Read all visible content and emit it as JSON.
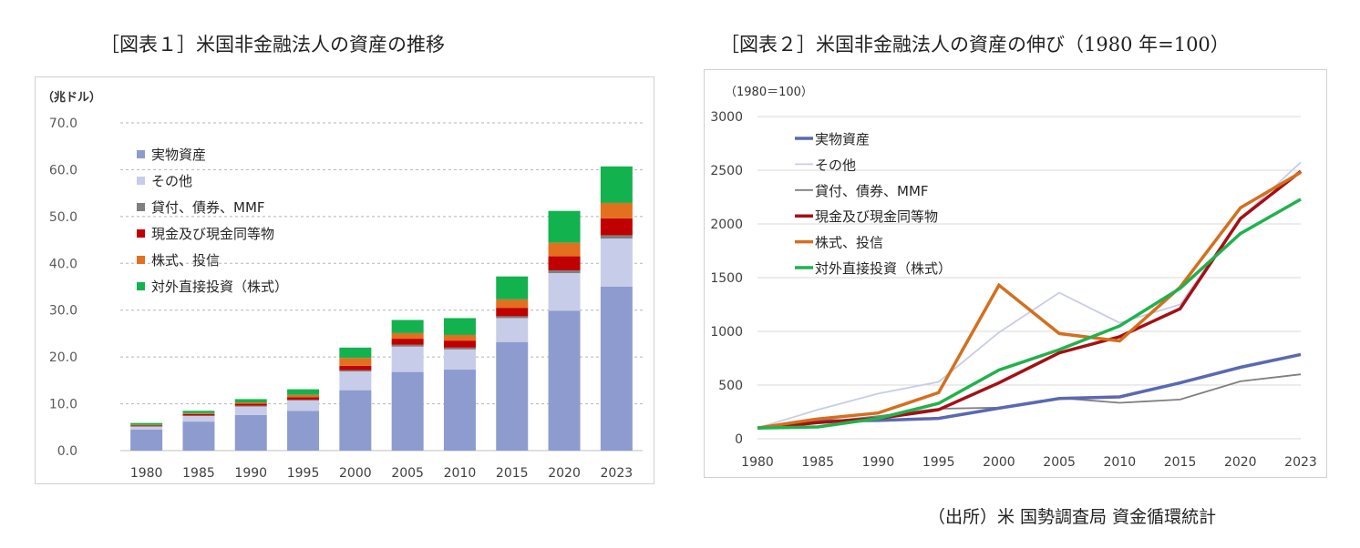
{
  "source_note": "（出所）米 国勢調査局 資金循環統計",
  "chart_data": [
    {
      "type": "bar",
      "stacked": true,
      "title": "［図表１］米国非金融法人の資産の推移",
      "ylabel": "（兆ドル）",
      "ylim": [
        0,
        70
      ],
      "yticks": [
        "0.0",
        "10.0",
        "20.0",
        "30.0",
        "40.0",
        "50.0",
        "60.0",
        "70.0"
      ],
      "grid": true,
      "legend_position": "upper-left",
      "categories": [
        "1980",
        "1985",
        "1990",
        "1995",
        "2000",
        "2005",
        "2010",
        "2015",
        "2020",
        "2023"
      ],
      "series": [
        {
          "name": "実物資産",
          "color": "#8e9bcf",
          "values": [
            4.5,
            6.2,
            7.6,
            8.5,
            12.9,
            16.8,
            17.3,
            23.2,
            29.9,
            35.0
          ]
        },
        {
          "name": "その他",
          "color": "#c7cde8",
          "values": [
            0.6,
            1.2,
            1.8,
            2.2,
            4.0,
            5.4,
            4.3,
            5.1,
            8.0,
            10.3
          ]
        },
        {
          "name": "貸付、債券、MMF",
          "color": "#7f7f7f",
          "values": [
            0.1,
            0.1,
            0.2,
            0.2,
            0.3,
            0.4,
            0.4,
            0.4,
            0.6,
            0.7
          ]
        },
        {
          "name": "現金及び現金同等物",
          "color": "#c00000",
          "values": [
            0.2,
            0.3,
            0.4,
            0.5,
            0.9,
            1.3,
            1.5,
            1.8,
            3.0,
            3.6
          ]
        },
        {
          "name": "株式、投信",
          "color": "#e2701f",
          "values": [
            0.1,
            0.2,
            0.3,
            0.5,
            1.7,
            1.2,
            1.2,
            1.8,
            2.9,
            3.3
          ]
        },
        {
          "name": "対外直接投資（株式）",
          "color": "#12b24f",
          "values": [
            0.4,
            0.5,
            0.7,
            1.2,
            2.2,
            2.8,
            3.6,
            4.9,
            6.8,
            7.8
          ]
        }
      ]
    },
    {
      "type": "line",
      "title": "［図表２］米国非金融法人の資産の伸び（1980 年=100）",
      "ylabel": "（1980＝100）",
      "ylim": [
        0,
        3000
      ],
      "yticks": [
        "0",
        "500",
        "1000",
        "1500",
        "2000",
        "2500",
        "3000"
      ],
      "grid": true,
      "legend_position": "upper-left",
      "x": [
        "1980",
        "1985",
        "1990",
        "1995",
        "2000",
        "2005",
        "2010",
        "2015",
        "2020",
        "2023"
      ],
      "series": [
        {
          "name": "実物資産",
          "color": "#5a69b0",
          "width": 3.5,
          "values": [
            100,
            165,
            170,
            190,
            285,
            375,
            390,
            520,
            665,
            785
          ]
        },
        {
          "name": "その他",
          "color": "#c9cce6",
          "width": 1.8,
          "values": [
            100,
            270,
            420,
            530,
            990,
            1360,
            1080,
            1250,
            2050,
            2575
          ]
        },
        {
          "name": "貸付、債券、MMF",
          "color": "#7f7f7f",
          "width": 1.8,
          "values": [
            100,
            150,
            210,
            280,
            290,
            380,
            335,
            365,
            535,
            600
          ]
        },
        {
          "name": "現金及び現金同等物",
          "color": "#a50f15",
          "width": 3.5,
          "values": [
            100,
            150,
            190,
            270,
            520,
            800,
            950,
            1210,
            2050,
            2490
          ]
        },
        {
          "name": "株式、投信",
          "color": "#d46f1e",
          "width": 3.5,
          "values": [
            100,
            185,
            240,
            430,
            1430,
            980,
            910,
            1410,
            2150,
            2480
          ]
        },
        {
          "name": "対外直接投資（株式）",
          "color": "#21b14d",
          "width": 3.5,
          "values": [
            100,
            110,
            190,
            330,
            640,
            830,
            1050,
            1400,
            1910,
            2230
          ]
        }
      ]
    }
  ]
}
